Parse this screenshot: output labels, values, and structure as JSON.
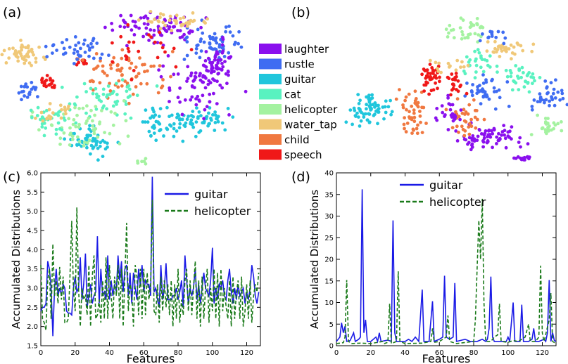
{
  "figure": {
    "panel_labels": [
      "(a)",
      "(b)",
      "(c)",
      "(d)"
    ],
    "legend_colors": {
      "laughter": "#8a10ee",
      "rustle": "#3f6cf2",
      "guitar": "#20c6dc",
      "cat": "#59f2c0",
      "helicopter": "#a4f2a0",
      "water_tap": "#f0c878",
      "child": "#f07840",
      "speech": "#f01818"
    }
  },
  "chart_data": [
    {
      "type": "scatter",
      "panel": "(a)",
      "legend": [
        "laughter",
        "rustle",
        "guitar",
        "cat",
        "helicopter",
        "water_tap",
        "child",
        "speech"
      ]
    },
    {
      "type": "scatter",
      "panel": "(b)"
    },
    {
      "type": "line",
      "panel": "(c)",
      "xlabel": "Features",
      "ylabel": "Accumulated Distributions",
      "xlim": [
        0,
        128
      ],
      "ylim": [
        1.5,
        6.0
      ],
      "xticks": [
        "0",
        "20",
        "40",
        "60",
        "80",
        "100",
        "120"
      ],
      "yticks": [
        "1.5",
        "2.0",
        "2.5",
        "3.0",
        "3.5",
        "4.0",
        "4.5",
        "5.0",
        "5.5",
        "6.0"
      ],
      "series": [
        {
          "name": "guitar",
          "color": "#1a1ae6",
          "dash": false,
          "values": [
            2.4,
            2.5,
            2.5,
            2.6,
            3.7,
            3.5,
            3.0,
            1.75,
            3.0,
            3.5,
            2.8,
            3.0,
            2.8,
            3.1,
            3.0,
            2.4,
            2.35,
            2.35,
            2.3,
            3.0,
            3.3,
            2.9,
            3.0,
            3.8,
            2.7,
            3.1,
            3.9,
            2.5,
            2.8,
            3.1,
            2.6,
            2.8,
            2.9,
            4.35,
            2.6,
            3.5,
            2.8,
            2.9,
            2.7,
            3.85,
            2.7,
            3.2,
            2.8,
            3.1,
            2.9,
            3.85,
            3.2,
            3.7,
            2.9,
            3.5,
            3.6,
            2.8,
            3.4,
            2.6,
            3.4,
            3.0,
            2.7,
            3.5,
            3.05,
            3.6,
            2.9,
            3.2,
            3.1,
            3.1,
            2.8,
            5.9,
            2.9,
            3.0,
            2.7,
            2.5,
            3.6,
            2.7,
            3.0,
            3.65,
            2.7,
            2.7,
            2.7,
            2.8,
            2.8,
            3.0,
            2.7,
            2.9,
            3.2,
            2.5,
            3.85,
            3.2,
            2.6,
            3.0,
            2.8,
            3.0,
            3.5,
            2.7,
            3.1,
            2.6,
            3.0,
            3.4,
            3.0,
            2.9,
            2.8,
            3.2,
            4.05,
            2.6,
            3.0,
            2.7,
            3.1,
            3.0,
            3.2,
            2.8,
            2.7,
            3.2,
            3.5,
            2.9,
            2.6,
            3.0,
            2.7,
            3.1,
            2.8,
            2.9,
            3.0,
            2.6,
            2.9,
            2.7,
            3.0,
            3.6,
            3.3,
            2.8,
            2.6,
            2.9
          ]
        },
        {
          "name": "helicopter",
          "color": "#1a7a1a",
          "dash": true,
          "values": [
            3.6,
            2.2,
            2.1,
            1.9,
            3.2,
            3.5,
            2.2,
            4.15,
            2.8,
            3.2,
            2.6,
            3.55,
            2.7,
            3.3,
            2.1,
            2.1,
            2.2,
            3.3,
            4.75,
            3.0,
            2.4,
            5.1,
            3.0,
            2.0,
            3.0,
            2.7,
            2.8,
            2.3,
            3.6,
            2.0,
            3.3,
            3.85,
            2.2,
            2.3,
            2.7,
            2.1,
            3.2,
            2.2,
            3.8,
            2.2,
            3.6,
            2.8,
            2.2,
            3.3,
            2.8,
            3.6,
            2.2,
            3.5,
            2.0,
            3.3,
            4.7,
            2.4,
            3.1,
            2.9,
            2.0,
            3.6,
            3.3,
            2.3,
            3.5,
            2.2,
            3.5,
            2.3,
            3.4,
            2.7,
            3.1,
            5.3,
            2.4,
            2.3,
            3.1,
            2.1,
            3.3,
            2.4,
            3.2,
            2.5,
            3.1,
            2.3,
            3.2,
            2.0,
            3.1,
            2.2,
            3.5,
            2.1,
            2.7,
            2.3,
            3.2,
            3.5,
            2.4,
            3.2,
            2.3,
            3.0,
            3.7,
            2.2,
            3.2,
            2.0,
            3.3,
            2.2,
            3.0,
            3.5,
            2.1,
            3.0,
            2.4,
            3.5,
            2.2,
            3.4,
            2.0,
            3.5,
            2.4,
            3.0,
            2.5,
            2.2,
            3.2,
            2.0,
            3.3,
            2.2,
            2.9,
            3.2,
            2.2,
            3.3,
            2.0,
            2.4,
            3.1,
            2.2,
            3.2,
            2.1,
            2.8,
            3.1,
            2.9,
            3.4
          ]
        }
      ]
    },
    {
      "type": "line",
      "panel": "(d)",
      "xlabel": "Features",
      "ylabel": "Accumulated Distributions",
      "xlim": [
        0,
        128
      ],
      "ylim": [
        0,
        40
      ],
      "xticks": [
        "0",
        "20",
        "40",
        "60",
        "80",
        "100",
        "120"
      ],
      "yticks": [
        "0",
        "5",
        "10",
        "15",
        "20",
        "25",
        "30",
        "35",
        "40"
      ],
      "series": [
        {
          "name": "guitar",
          "color": "#1a1ae6",
          "dash": false,
          "points": [
            [
              0,
              1
            ],
            [
              2,
              2
            ],
            [
              3,
              5.3
            ],
            [
              4,
              3
            ],
            [
              5,
              4.5
            ],
            [
              6,
              1
            ],
            [
              8,
              1.2
            ],
            [
              10,
              3
            ],
            [
              11,
              1
            ],
            [
              13,
              1.5
            ],
            [
              14,
              2
            ],
            [
              15,
              36.2
            ],
            [
              16,
              3
            ],
            [
              17,
              6
            ],
            [
              18,
              1
            ],
            [
              20,
              1
            ],
            [
              23,
              2
            ],
            [
              24,
              1
            ],
            [
              25,
              3
            ],
            [
              26,
              1
            ],
            [
              30,
              1.3
            ],
            [
              32,
              1
            ],
            [
              33,
              29
            ],
            [
              34,
              3
            ],
            [
              35,
              1
            ],
            [
              40,
              1
            ],
            [
              42,
              1.5
            ],
            [
              44,
              1
            ],
            [
              46,
              2
            ],
            [
              48,
              1
            ],
            [
              50,
              13
            ],
            [
              51,
              1
            ],
            [
              54,
              1
            ],
            [
              56,
              10.3
            ],
            [
              57,
              1
            ],
            [
              60,
              1.5
            ],
            [
              62,
              2
            ],
            [
              63,
              16.2
            ],
            [
              64,
              2
            ],
            [
              66,
              1.5
            ],
            [
              68,
              2
            ],
            [
              69,
              14.5
            ],
            [
              70,
              1
            ],
            [
              75,
              1.5
            ],
            [
              78,
              1
            ],
            [
              82,
              1
            ],
            [
              85,
              1.5
            ],
            [
              87,
              1
            ],
            [
              88,
              1.5
            ],
            [
              89,
              4
            ],
            [
              90,
              16
            ],
            [
              91,
              2
            ],
            [
              92,
              1
            ],
            [
              95,
              1
            ],
            [
              99,
              1
            ],
            [
              100,
              2
            ],
            [
              101,
              1
            ],
            [
              103,
              10
            ],
            [
              104,
              1
            ],
            [
              107,
              1
            ],
            [
              108,
              9.5
            ],
            [
              109,
              1
            ],
            [
              112,
              1
            ],
            [
              114,
              1.5
            ],
            [
              115,
              4
            ],
            [
              116,
              1
            ],
            [
              118,
              1
            ],
            [
              121,
              1.5
            ],
            [
              122,
              1
            ],
            [
              123,
              3
            ],
            [
              124,
              15.2
            ],
            [
              125,
              1
            ],
            [
              126,
              3
            ],
            [
              127,
              1.2
            ],
            [
              128,
              1
            ]
          ]
        },
        {
          "name": "helicopter",
          "color": "#1a7a1a",
          "dash": true,
          "points": [
            [
              0,
              0.5
            ],
            [
              4,
              0.7
            ],
            [
              5,
              2
            ],
            [
              6,
              15.2
            ],
            [
              7,
              1
            ],
            [
              9,
              0.5
            ],
            [
              14,
              0.6
            ],
            [
              20,
              0.5
            ],
            [
              27,
              1
            ],
            [
              28,
              0.5
            ],
            [
              30,
              0.8
            ],
            [
              31,
              9.7
            ],
            [
              32,
              0.5
            ],
            [
              35,
              1
            ],
            [
              36,
              17.2
            ],
            [
              37,
              1
            ],
            [
              40,
              0.5
            ],
            [
              50,
              0.6
            ],
            [
              55,
              1
            ],
            [
              56,
              4
            ],
            [
              57,
              0.8
            ],
            [
              60,
              1
            ],
            [
              64,
              2
            ],
            [
              65,
              7
            ],
            [
              66,
              1
            ],
            [
              70,
              0.5
            ],
            [
              80,
              1
            ],
            [
              81,
              6
            ],
            [
              82,
              18
            ],
            [
              83,
              29
            ],
            [
              84,
              20
            ],
            [
              85,
              34
            ],
            [
              86,
              10
            ],
            [
              87,
              1
            ],
            [
              90,
              1
            ],
            [
              92,
              2
            ],
            [
              94,
              2.5
            ],
            [
              95,
              9.7
            ],
            [
              96,
              1
            ],
            [
              100,
              0.8
            ],
            [
              103,
              1.2
            ],
            [
              106,
              1
            ],
            [
              110,
              2
            ],
            [
              112,
              5
            ],
            [
              113,
              1
            ],
            [
              116,
              1
            ],
            [
              118,
              2
            ],
            [
              119,
              18.5
            ],
            [
              120,
              3
            ],
            [
              121,
              1
            ],
            [
              124,
              6
            ],
            [
              125,
              12.2
            ],
            [
              126,
              1
            ],
            [
              128,
              0.5
            ]
          ]
        }
      ]
    }
  ]
}
